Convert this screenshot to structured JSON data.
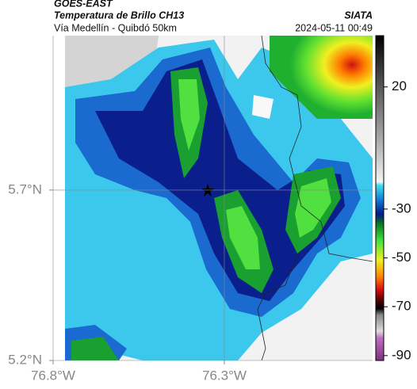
{
  "header": {
    "title": "GOES-EAST",
    "subtitle": "Temperatura de Brillo CH13",
    "route": "Vía Medellín - Quibdó 50km",
    "source": "SIATA",
    "timestamp": "2024-05-11 00:49"
  },
  "map": {
    "xlim": [
      -76.8,
      -75.867
    ],
    "ylim": [
      5.2,
      6.153
    ],
    "xticks": [
      {
        "value": -76.8,
        "label": "76.8°W"
      },
      {
        "value": -76.3,
        "label": "76.3°W"
      }
    ],
    "yticks": [
      {
        "value": 5.7,
        "label": "5.7°N"
      },
      {
        "value": 5.2,
        "label": "5.2°N"
      }
    ]
  },
  "colorbar": {
    "clim": [
      -92,
      41
    ],
    "ticks": [
      20,
      -30,
      -50,
      -70,
      -90
    ]
  }
}
